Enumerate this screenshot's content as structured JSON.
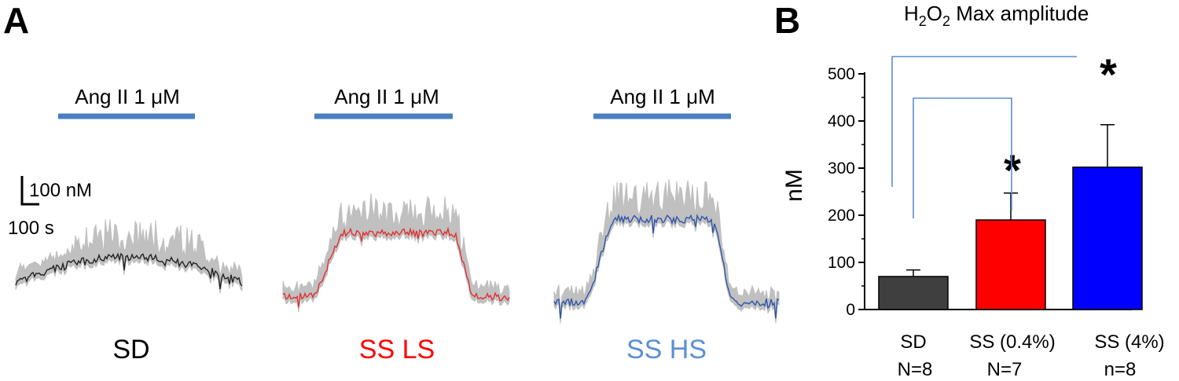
{
  "panel_a": {
    "letter": "A",
    "scale_bar": {
      "concentration_label": "100 nM",
      "time_label": "100 s"
    },
    "traces": [
      {
        "group_label": "SD",
        "label_color": "#000000",
        "trace_color": "#222222",
        "drug_label": "Ang II  1 μM",
        "bar_color": "#4a7fc1"
      },
      {
        "group_label": "SS LS",
        "label_color": "#ff0000",
        "trace_color": "#e23030",
        "drug_label": "Ang II  1 μM",
        "bar_color": "#4a7fc1"
      },
      {
        "group_label": "SS HS",
        "label_color": "#5b8ed6",
        "trace_color": "#2f55a8",
        "drug_label": "Ang II  1 μM",
        "bar_color": "#4a7fc1"
      }
    ],
    "error_color": "#c0c0c0"
  },
  "panel_b": {
    "letter": "B",
    "chart_data": {
      "type": "bar",
      "title": "H2O2 Max amplitude",
      "title_parts": {
        "base": "H",
        "sub1": "2",
        "mid": "O",
        "sub2": "2",
        "rest": " Max amplitude"
      },
      "ylabel": "nM",
      "ylim": [
        0,
        500
      ],
      "yticks": [
        0,
        100,
        200,
        300,
        400,
        500
      ],
      "categories": [
        "SD",
        "SS (0.4%)",
        "SS (4%)"
      ],
      "n_labels": [
        "N=8",
        "N=7",
        "n=8"
      ],
      "values": [
        70,
        190,
        302
      ],
      "errors": [
        14,
        57,
        90
      ],
      "colors": [
        "#3f3f3f",
        "#ff0000",
        "#0000ff"
      ],
      "significance": [
        "",
        "*",
        "*"
      ],
      "comparison_color": "#5b8ed6",
      "grid": false
    }
  }
}
